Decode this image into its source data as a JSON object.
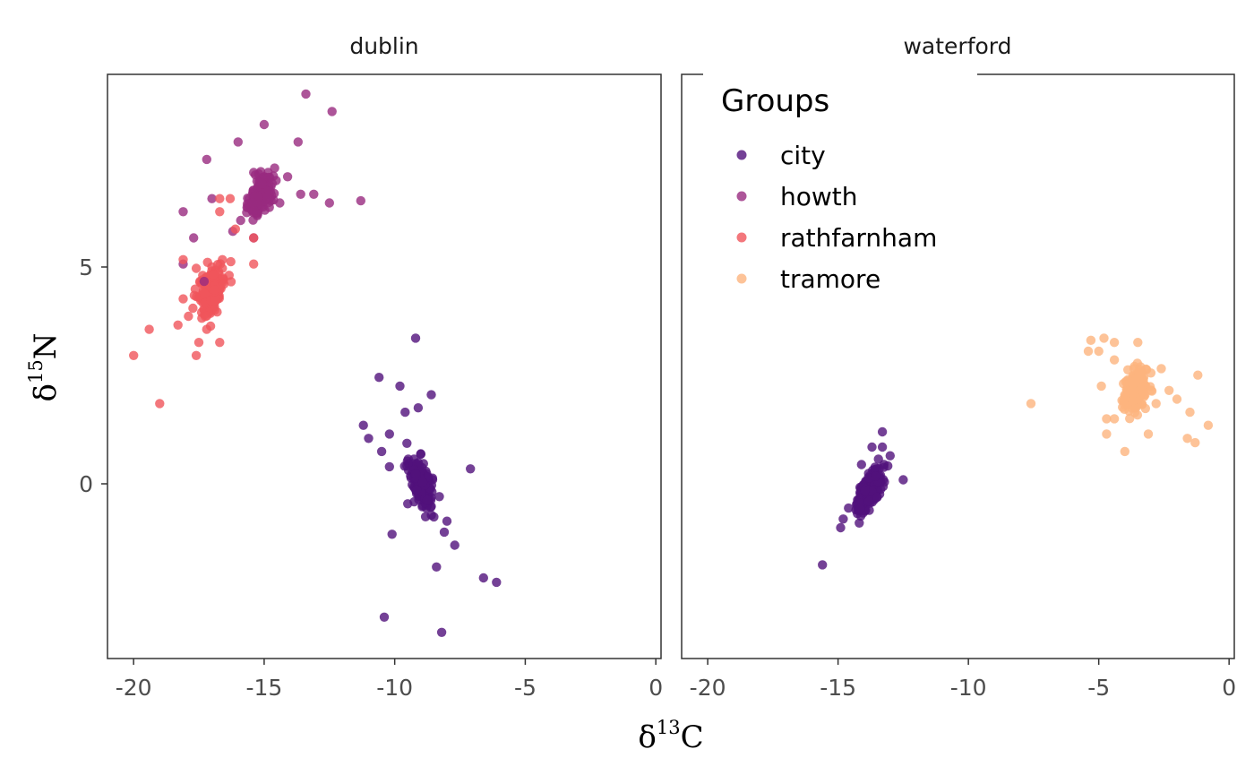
{
  "chart_data": {
    "type": "scatter",
    "facets": [
      "dublin",
      "waterford"
    ],
    "xlabel": {
      "base": "δ",
      "sup": "13",
      "tail": "C"
    },
    "ylabel": {
      "base": "δ",
      "sup": "15",
      "tail": "N"
    },
    "xlim": [
      -21,
      0.2
    ],
    "ylim": [
      -4.05,
      9.35
    ],
    "x_ticks": [
      -20,
      -15,
      -10,
      -5,
      0
    ],
    "x_tick_labels": [
      "-20",
      "-15",
      "-10",
      "-5",
      "0"
    ],
    "y_ticks": [
      0,
      5
    ],
    "y_tick_labels": [
      "0",
      "5"
    ],
    "grid": false,
    "legend": {
      "title": "Groups",
      "placement": "top-left of waterford panel",
      "entries": [
        "city",
        "howth",
        "rathfarnham",
        "tramore"
      ]
    },
    "series_colors": {
      "city": "#51127c",
      "howth": "#992a80",
      "rathfarnham": "#f0555b",
      "tramore": "#fdb47e"
    },
    "point_opacity": 0.8,
    "clusters": [
      {
        "facet": "dublin",
        "group": "city",
        "center": [
          -9.0,
          0.0
        ],
        "sd": [
          0.22,
          0.3
        ],
        "corr": -0.55,
        "n": 200
      },
      {
        "facet": "dublin",
        "group": "howth",
        "center": [
          -15.1,
          6.6
        ],
        "sd": [
          0.22,
          0.22
        ],
        "corr": 0.45,
        "n": 200
      },
      {
        "facet": "dublin",
        "group": "rathfarnham",
        "center": [
          -17.0,
          4.4
        ],
        "sd": [
          0.25,
          0.28
        ],
        "corr": 0.5,
        "n": 200
      },
      {
        "facet": "waterford",
        "group": "city",
        "center": [
          -13.8,
          -0.2
        ],
        "sd": [
          0.25,
          0.26
        ],
        "corr": 0.7,
        "n": 200
      },
      {
        "facet": "waterford",
        "group": "tramore",
        "center": [
          -3.6,
          2.1
        ],
        "sd": [
          0.22,
          0.22
        ],
        "corr": 0.2,
        "n": 200
      }
    ],
    "outliers": [
      {
        "facet": "dublin",
        "group": "city",
        "points": [
          [
            -9.2,
            3.3
          ],
          [
            -10.6,
            2.4
          ],
          [
            -9.8,
            2.2
          ],
          [
            -8.6,
            2.0
          ],
          [
            -9.6,
            1.6
          ],
          [
            -9.1,
            1.7
          ],
          [
            -11.2,
            1.3
          ],
          [
            -11.0,
            1.0
          ],
          [
            -10.5,
            0.7
          ],
          [
            -10.2,
            1.1
          ],
          [
            -10.2,
            0.35
          ],
          [
            -7.1,
            0.3
          ],
          [
            -8.0,
            -0.9
          ],
          [
            -8.1,
            -1.15
          ],
          [
            -10.1,
            -1.2
          ],
          [
            -7.7,
            -1.45
          ],
          [
            -8.4,
            -1.95
          ],
          [
            -6.6,
            -2.2
          ],
          [
            -6.1,
            -2.3
          ],
          [
            -10.4,
            -3.1
          ],
          [
            -8.2,
            -3.45
          ],
          [
            -9.5,
            -0.5
          ],
          [
            -8.5,
            -0.8
          ]
        ]
      },
      {
        "facet": "dublin",
        "group": "howth",
        "points": [
          [
            -13.4,
            8.9
          ],
          [
            -12.4,
            8.5
          ],
          [
            -15.0,
            8.2
          ],
          [
            -16.0,
            7.8
          ],
          [
            -13.7,
            7.8
          ],
          [
            -17.2,
            7.4
          ],
          [
            -14.6,
            7.2
          ],
          [
            -14.1,
            7.0
          ],
          [
            -17.0,
            6.5
          ],
          [
            -18.1,
            6.2
          ],
          [
            -17.7,
            5.6
          ],
          [
            -18.1,
            5.0
          ],
          [
            -13.1,
            6.6
          ],
          [
            -13.6,
            6.6
          ],
          [
            -12.5,
            6.4
          ],
          [
            -11.3,
            6.45
          ],
          [
            -14.4,
            6.4
          ],
          [
            -15.9,
            6.0
          ],
          [
            -16.2,
            5.75
          ],
          [
            -15.4,
            5.6
          ],
          [
            -17.3,
            4.6
          ],
          [
            -14.8,
            6.3
          ],
          [
            -15.4,
            7.1
          ]
        ]
      },
      {
        "facet": "dublin",
        "group": "rathfarnham",
        "points": [
          [
            -16.7,
            6.5
          ],
          [
            -16.3,
            6.5
          ],
          [
            -16.7,
            6.2
          ],
          [
            -16.1,
            5.8
          ],
          [
            -15.4,
            5.6
          ],
          [
            -15.4,
            5.0
          ],
          [
            -16.6,
            5.1
          ],
          [
            -18.1,
            5.1
          ],
          [
            -17.2,
            3.5
          ],
          [
            -18.3,
            3.6
          ],
          [
            -19.4,
            3.5
          ],
          [
            -20.0,
            2.9
          ],
          [
            -17.6,
            2.9
          ],
          [
            -16.7,
            3.2
          ],
          [
            -17.5,
            3.2
          ],
          [
            -17.9,
            3.8
          ],
          [
            -18.1,
            4.2
          ],
          [
            -19.0,
            1.8
          ],
          [
            -16.8,
            3.9
          ],
          [
            -17.6,
            4.9
          ],
          [
            -16.6,
            4.9
          ]
        ]
      },
      {
        "facet": "waterford",
        "group": "city",
        "points": [
          [
            -15.6,
            -1.9
          ],
          [
            -14.9,
            -1.05
          ],
          [
            -14.8,
            -0.85
          ],
          [
            -14.6,
            -0.6
          ],
          [
            -13.3,
            1.15
          ],
          [
            -13.7,
            0.8
          ],
          [
            -13.3,
            0.8
          ],
          [
            -12.5,
            0.05
          ],
          [
            -13.0,
            0.6
          ],
          [
            -13.8,
            -0.65
          ],
          [
            -13.5,
            -0.35
          ],
          [
            -14.1,
            0.4
          ]
        ]
      },
      {
        "facet": "waterford",
        "group": "tramore",
        "points": [
          [
            -7.6,
            1.8
          ],
          [
            -5.3,
            3.25
          ],
          [
            -4.8,
            3.3
          ],
          [
            -4.4,
            3.2
          ],
          [
            -5.4,
            3.0
          ],
          [
            -5.0,
            3.0
          ],
          [
            -3.5,
            3.2
          ],
          [
            -4.7,
            1.1
          ],
          [
            -4.7,
            1.45
          ],
          [
            -4.4,
            1.45
          ],
          [
            -4.0,
            0.7
          ],
          [
            -4.9,
            2.2
          ],
          [
            -2.6,
            2.6
          ],
          [
            -2.3,
            2.1
          ],
          [
            -1.2,
            2.45
          ],
          [
            -2.0,
            1.9
          ],
          [
            -1.5,
            1.6
          ],
          [
            -0.8,
            1.3
          ],
          [
            -1.6,
            1.0
          ],
          [
            -1.3,
            0.9
          ],
          [
            -3.1,
            1.1
          ],
          [
            -2.8,
            1.8
          ],
          [
            -4.4,
            2.8
          ],
          [
            -3.0,
            2.5
          ]
        ]
      }
    ]
  }
}
